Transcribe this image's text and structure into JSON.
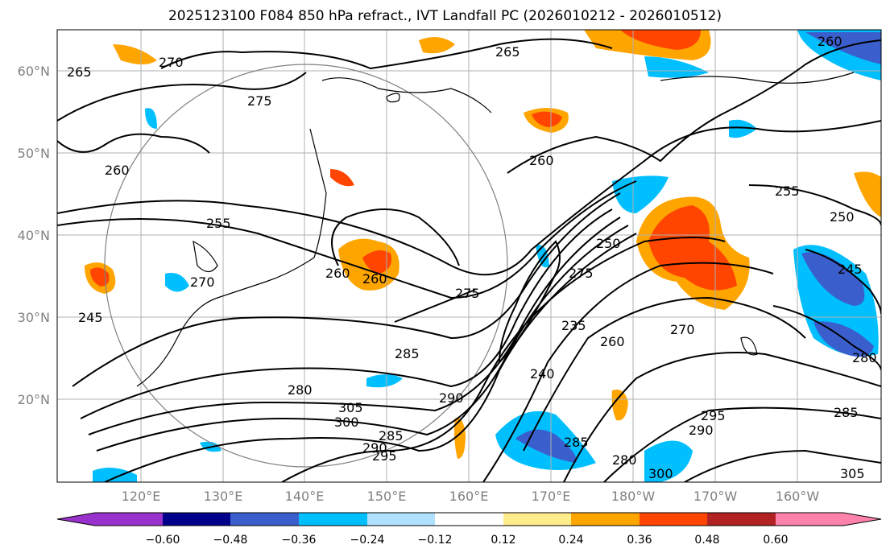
{
  "title": "2025123100 F084 850 hPa refract., IVT Landfall PC (2026010212 - 2026010512)",
  "lat_labels": [
    "60°N",
    "50°N",
    "40°N",
    "30°N",
    "20°N"
  ],
  "lon_labels": [
    "120°E",
    "130°E",
    "140°E",
    "150°E",
    "160°E",
    "170°E",
    "180°W",
    "170°W",
    "160°W"
  ],
  "contour_labels": [
    "265",
    "270",
    "275",
    "260",
    "255",
    "270",
    "260",
    "275",
    "285",
    "280",
    "305",
    "300",
    "290",
    "295",
    "285",
    "290",
    "275",
    "250",
    "235",
    "240",
    "260",
    "270",
    "285",
    "280",
    "300",
    "290",
    "295",
    "255",
    "250",
    "245",
    "280",
    "285",
    "305",
    "260",
    "260",
    "265",
    "260",
    "245"
  ],
  "colorbar": {
    "colors": [
      "#9932cc",
      "#00008b",
      "#3a5fcd",
      "#00bfff",
      "#b0e2ff",
      "#ffffff",
      "#ffec8b",
      "#ffa500",
      "#ff4500",
      "#b22222",
      "#ff82ab"
    ],
    "ticks": [
      "−0.60",
      "−0.48",
      "−0.36",
      "−0.24",
      "−0.12",
      "0.12",
      "0.24",
      "0.36",
      "0.48",
      "0.60"
    ]
  }
}
